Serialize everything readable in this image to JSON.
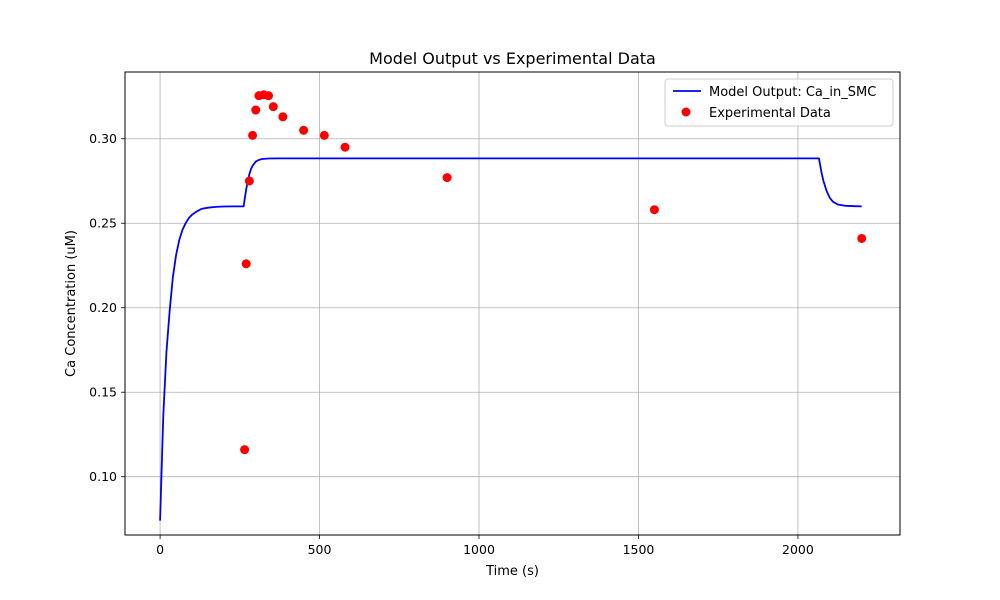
{
  "chart_data": {
    "type": "line",
    "title": "Model Output vs Experimental Data",
    "xlabel": "Time (s)",
    "ylabel": "Ca Concentration (uM)",
    "xlim": [
      -110,
      2320
    ],
    "ylim": [
      0.0655,
      0.3395
    ],
    "xticks": [
      0,
      500,
      1000,
      1500,
      2000
    ],
    "xtick_labels": [
      "0",
      "500",
      "1000",
      "1500",
      "2000"
    ],
    "yticks": [
      0.1,
      0.15,
      0.2,
      0.25,
      0.3
    ],
    "ytick_labels": [
      "0.10",
      "0.15",
      "0.20",
      "0.25",
      "0.30"
    ],
    "grid": true,
    "legend_position": "top-right",
    "series": [
      {
        "name": "Model Output: Ca_in_SMC",
        "kind": "line",
        "color": "#0000ff",
        "x": [
          0,
          10,
          20,
          30,
          40,
          50,
          60,
          70,
          80,
          90,
          100,
          115,
          130,
          150,
          175,
          200,
          230,
          262,
          265,
          270,
          275,
          280,
          285,
          290,
          300,
          310,
          320,
          340,
          370,
          420,
          500,
          700,
          1000,
          1500,
          2000,
          2066,
          2070,
          2075,
          2080,
          2090,
          2100,
          2110,
          2125,
          2150,
          2180,
          2200
        ],
        "y": [
          0.074,
          0.136,
          0.174,
          0.198,
          0.218,
          0.231,
          0.24,
          0.246,
          0.25,
          0.253,
          0.255,
          0.257,
          0.2585,
          0.2592,
          0.2597,
          0.2599,
          0.26,
          0.26,
          0.264,
          0.27,
          0.275,
          0.279,
          0.282,
          0.284,
          0.2865,
          0.2875,
          0.288,
          0.2883,
          0.2884,
          0.2884,
          0.2884,
          0.2884,
          0.2884,
          0.2884,
          0.2884,
          0.2884,
          0.284,
          0.279,
          0.275,
          0.269,
          0.265,
          0.2627,
          0.2611,
          0.2603,
          0.2601,
          0.26
        ]
      },
      {
        "name": "Experimental Data",
        "kind": "scatter",
        "color": "#ff0000",
        "x": [
          265,
          270,
          280,
          290,
          300,
          310,
          325,
          340,
          355,
          385,
          450,
          515,
          580,
          900,
          1550,
          2200
        ],
        "y": [
          0.116,
          0.226,
          0.275,
          0.302,
          0.317,
          0.3255,
          0.326,
          0.3255,
          0.319,
          0.313,
          0.305,
          0.302,
          0.295,
          0.277,
          0.258,
          0.241
        ]
      }
    ]
  }
}
